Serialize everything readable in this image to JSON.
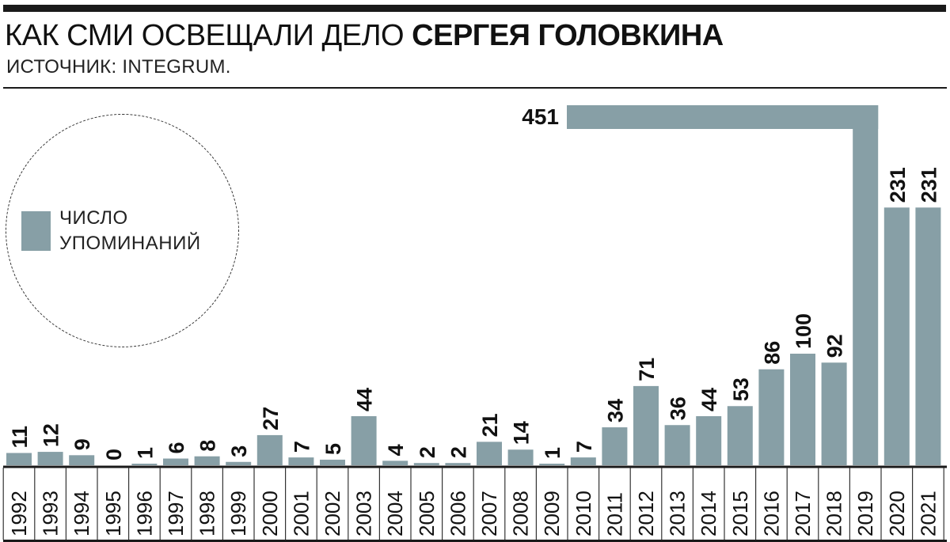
{
  "header": {
    "title_regular": "КАК СМИ ОСВЕЩАЛИ ДЕЛО ",
    "title_bold": "СЕРГЕЯ ГОЛОВКИНА",
    "subtitle": "ИСТОЧНИК: INTEGRUM."
  },
  "legend": {
    "line1": "ЧИСЛО",
    "line2": "УПОМИНАНИЙ"
  },
  "colors": {
    "bar": "#879fa6",
    "text": "#111111",
    "rule": "#1a1a1a"
  },
  "chart_data": {
    "type": "bar",
    "categories": [
      "1992",
      "1993",
      "1994",
      "1995",
      "1996",
      "1997",
      "1998",
      "1999",
      "2000",
      "2001",
      "2002",
      "2003",
      "2004",
      "2005",
      "2006",
      "2007",
      "2008",
      "2009",
      "2010",
      "2011",
      "2012",
      "2013",
      "2014",
      "2015",
      "2016",
      "2017",
      "2018",
      "2019",
      "2020",
      "2021"
    ],
    "values": [
      11,
      12,
      9,
      0,
      1,
      6,
      8,
      3,
      27,
      7,
      5,
      44,
      4,
      2,
      2,
      21,
      14,
      1,
      7,
      34,
      71,
      36,
      44,
      53,
      86,
      100,
      92,
      451,
      231,
      231
    ],
    "data_labels": [
      "11",
      "12",
      "9",
      "0",
      "1",
      "6",
      "8",
      "3",
      "27",
      "7",
      "5",
      "44",
      "4",
      "2",
      "2",
      "21",
      "14",
      "1",
      "7",
      "34",
      "71",
      "36",
      "44",
      "53",
      "86",
      "100",
      "92",
      "451",
      "231",
      "231"
    ],
    "note": "Bar for 2019 (451) is drawn broken: it rises to the top of the plot and bends left, with its label printed at the left end of the horizontal segment.",
    "broken_bar_index": 27,
    "title": "",
    "xlabel": "",
    "ylabel": "",
    "legend": [
      "ЧИСЛО УПОМИНАНИЙ"
    ],
    "legend_position": "left"
  }
}
